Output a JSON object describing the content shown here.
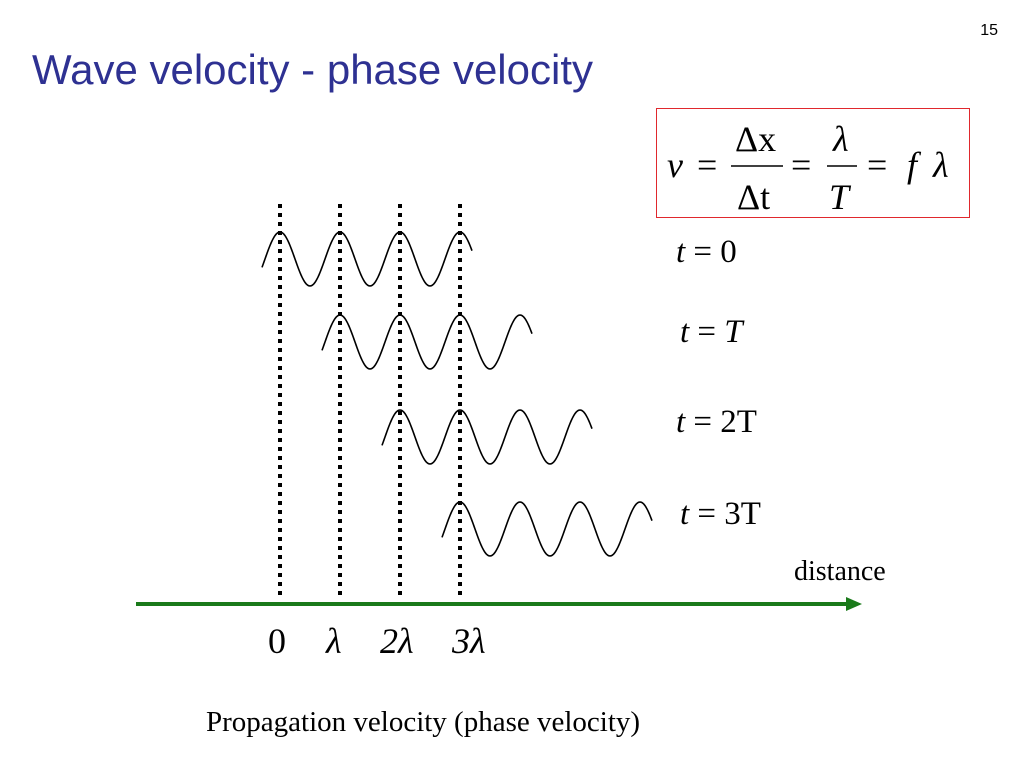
{
  "slide": {
    "number": "15",
    "title": "Wave velocity - phase velocity"
  },
  "formula": {
    "lhs": "v",
    "eq": "=",
    "frac1_num": "Δx",
    "frac1_den": "Δt",
    "frac2_num": "λ",
    "frac2_den": "T",
    "rhs_f": "f",
    "rhs_lambda": "λ"
  },
  "time_labels": [
    {
      "var": "t",
      "eq": " = ",
      "value": "0"
    },
    {
      "var": "t",
      "eq": " = ",
      "value": "T"
    },
    {
      "var": "t",
      "eq": " = ",
      "value": "2T"
    },
    {
      "var": "t",
      "eq": " = ",
      "value": "3T"
    }
  ],
  "axis": {
    "label": "distance",
    "ticks": [
      "0",
      "λ",
      "2λ",
      "3λ"
    ],
    "color": "#1a7a1a"
  },
  "caption": "Propagation velocity (phase velocity)",
  "waves": [
    {
      "start_wavelengths": 0,
      "end_wavelengths": 3.5
    },
    {
      "start_wavelengths": 1,
      "end_wavelengths": 4.5
    },
    {
      "start_wavelengths": 2,
      "end_wavelengths": 5.5
    },
    {
      "start_wavelengths": 3,
      "end_wavelengths": 6.5
    }
  ],
  "colors": {
    "title": "#2e3192",
    "box_border": "#e0282d",
    "wave": "#000000"
  }
}
